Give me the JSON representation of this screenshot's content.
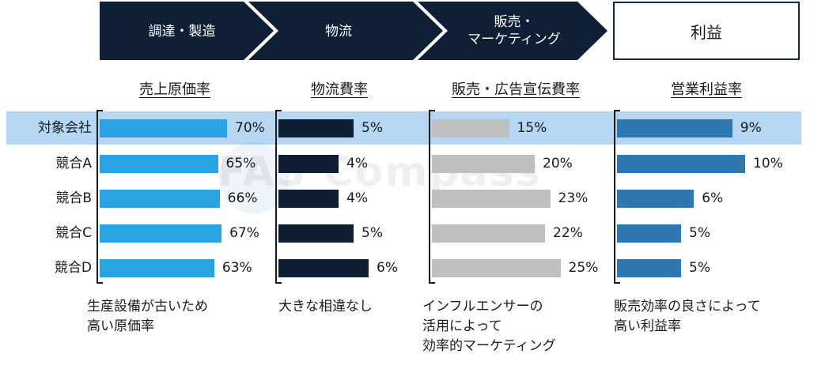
{
  "process_steps": [
    {
      "label": "調達・製造"
    },
    {
      "label": "物流"
    },
    {
      "label": "販売・\nマーケティング"
    }
  ],
  "profit_box": {
    "label": "利益"
  },
  "watermark": "FAS Compass",
  "chart_data": {
    "type": "bar",
    "orientation": "horizontal",
    "categories": [
      "対象会社",
      "競合A",
      "競合B",
      "競合C",
      "競合D"
    ],
    "highlighted_category": "対象会社",
    "panels": [
      {
        "title": "売上原価率",
        "color": "#29a4e3",
        "values": [
          70,
          65,
          66,
          67,
          63
        ],
        "labels": [
          "70%",
          "65%",
          "66%",
          "67%",
          "63%"
        ],
        "note": "生産設備が古いため\n高い原価率"
      },
      {
        "title": "物流費率",
        "color": "#0e1f33",
        "values": [
          5,
          4,
          4,
          5,
          6
        ],
        "labels": [
          "5%",
          "4%",
          "4%",
          "5%",
          "6%"
        ],
        "note": "大きな相違なし"
      },
      {
        "title": "販売・広告宣伝費率",
        "color": "#bfbfbf",
        "values": [
          15,
          20,
          23,
          22,
          25
        ],
        "labels": [
          "15%",
          "20%",
          "23%",
          "22%",
          "25%"
        ],
        "note": "インフルエンサーの\n活用によって\n効率的マーケティング"
      },
      {
        "title": "営業利益率",
        "color": "#2e77b0",
        "values": [
          9,
          10,
          6,
          5,
          5
        ],
        "labels": [
          "9%",
          "10%",
          "6%",
          "5%",
          "5%"
        ],
        "note": "販売効率の良さによって\n高い利益率"
      }
    ]
  }
}
